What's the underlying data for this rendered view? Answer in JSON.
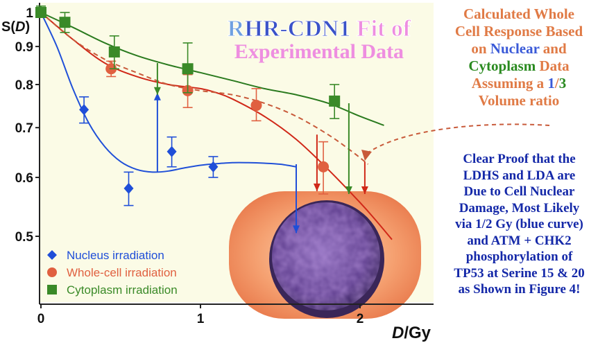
{
  "chart_data": {
    "type": "scatter",
    "title_parts": [
      {
        "text": "R",
        "color": "#6fa0e0"
      },
      {
        "text": "HR-CDN1",
        "color": "#3a52c8"
      },
      {
        "text": " Fit of",
        "color": "#ee8ee0"
      }
    ],
    "title_line2": "Experimental Data",
    "title_line2_color": "#ee8ee0",
    "ylabel": "S(D)",
    "ylabel_parts": [
      "S(",
      "D",
      ")"
    ],
    "xlabel_parts": [
      "D",
      "/Gy"
    ],
    "xlim": [
      0,
      2.4
    ],
    "ylim_log": [
      0.38,
      1.02
    ],
    "y_scale": "log",
    "x_ticks": [
      {
        "v": 0,
        "label": "0"
      },
      {
        "v": 1,
        "label": "1"
      },
      {
        "v": 2,
        "label": "2"
      }
    ],
    "y_ticks": [
      {
        "v": 1,
        "label": "1"
      },
      {
        "v": 0.9,
        "label": "0.9"
      },
      {
        "v": 0.8,
        "label": "0.8"
      },
      {
        "v": 0.7,
        "label": "0.7"
      },
      {
        "v": 0.6,
        "label": "0.6"
      },
      {
        "v": 0.5,
        "label": "0.5"
      }
    ],
    "legend_position": "bottom-left",
    "series": [
      {
        "name": "Nucleus irradiation",
        "marker": "diamond",
        "color": "#1f4ed8",
        "points": [
          {
            "x": 0,
            "y": 1.0,
            "lo": 0.985,
            "hi": 1.01
          },
          {
            "x": 0.27,
            "y": 0.74,
            "lo": 0.71,
            "hi": 0.77
          },
          {
            "x": 0.55,
            "y": 0.58,
            "lo": 0.55,
            "hi": 0.61
          },
          {
            "x": 0.82,
            "y": 0.65,
            "lo": 0.62,
            "hi": 0.68
          },
          {
            "x": 1.08,
            "y": 0.62,
            "lo": 0.6,
            "hi": 0.64
          }
        ]
      },
      {
        "name": "Whole-cell irradiation",
        "marker": "circle",
        "color": "#e06040",
        "points": [
          {
            "x": 0,
            "y": 1.0,
            "lo": 0.985,
            "hi": 1.01
          },
          {
            "x": 0.44,
            "y": 0.84,
            "lo": 0.82,
            "hi": 0.86
          },
          {
            "x": 0.92,
            "y": 0.785,
            "lo": 0.745,
            "hi": 0.825
          },
          {
            "x": 1.35,
            "y": 0.75,
            "lo": 0.715,
            "hi": 0.79
          },
          {
            "x": 1.77,
            "y": 0.62,
            "lo": 0.57,
            "hi": 0.67
          }
        ]
      },
      {
        "name": "Cytoplasm irradiation",
        "marker": "square",
        "color": "#3a8a28",
        "points": [
          {
            "x": 0,
            "y": 1.0,
            "lo": 0.985,
            "hi": 1.02
          },
          {
            "x": 0.15,
            "y": 0.97,
            "lo": 0.94,
            "hi": 1.0
          },
          {
            "x": 0.46,
            "y": 0.885,
            "lo": 0.84,
            "hi": 0.93
          },
          {
            "x": 0.92,
            "y": 0.84,
            "lo": 0.78,
            "hi": 0.91
          },
          {
            "x": 1.84,
            "y": 0.76,
            "lo": 0.72,
            "hi": 0.8
          }
        ]
      }
    ],
    "fits": [
      {
        "name": "nucleus-fit",
        "color": "#2050d8",
        "dash": false,
        "points": [
          [
            0,
            1.0
          ],
          [
            0.1,
            0.9
          ],
          [
            0.2,
            0.79
          ],
          [
            0.3,
            0.71
          ],
          [
            0.4,
            0.66
          ],
          [
            0.5,
            0.63
          ],
          [
            0.6,
            0.615
          ],
          [
            0.7,
            0.61
          ],
          [
            0.8,
            0.612
          ],
          [
            0.9,
            0.618
          ],
          [
            1.0,
            0.623
          ],
          [
            1.1,
            0.626
          ],
          [
            1.2,
            0.628
          ],
          [
            1.3,
            0.628
          ],
          [
            1.4,
            0.627
          ],
          [
            1.5,
            0.625
          ],
          [
            1.6,
            0.62
          ]
        ]
      },
      {
        "name": "whole-cell-fit",
        "color": "#d02818",
        "dash": false,
        "points": [
          [
            0,
            1.0
          ],
          [
            0.2,
            0.92
          ],
          [
            0.4,
            0.855
          ],
          [
            0.6,
            0.82
          ],
          [
            0.8,
            0.8
          ],
          [
            1.0,
            0.79
          ],
          [
            1.1,
            0.78
          ],
          [
            1.2,
            0.765
          ],
          [
            1.4,
            0.725
          ],
          [
            1.6,
            0.675
          ],
          [
            1.8,
            0.615
          ],
          [
            2.0,
            0.555
          ],
          [
            2.1,
            0.525
          ],
          [
            2.2,
            0.495
          ]
        ]
      },
      {
        "name": "cytoplasm-fit",
        "color": "#2a7a1e",
        "dash": false,
        "points": [
          [
            0,
            1.0
          ],
          [
            0.2,
            0.955
          ],
          [
            0.4,
            0.91
          ],
          [
            0.6,
            0.875
          ],
          [
            0.8,
            0.85
          ],
          [
            1.0,
            0.83
          ],
          [
            1.2,
            0.81
          ],
          [
            1.4,
            0.79
          ],
          [
            1.6,
            0.775
          ],
          [
            1.8,
            0.755
          ],
          [
            2.0,
            0.725
          ],
          [
            2.15,
            0.705
          ]
        ]
      },
      {
        "name": "calculated-whole-cell-fit",
        "color": "#c85a3a",
        "dash": true,
        "points": [
          [
            0,
            1.0
          ],
          [
            0.2,
            0.92
          ],
          [
            0.4,
            0.865
          ],
          [
            0.6,
            0.83
          ],
          [
            0.8,
            0.8
          ],
          [
            1.0,
            0.785
          ],
          [
            1.2,
            0.775
          ],
          [
            1.4,
            0.755
          ],
          [
            1.6,
            0.725
          ],
          [
            1.8,
            0.685
          ],
          [
            1.95,
            0.65
          ],
          [
            2.05,
            0.625
          ]
        ]
      }
    ],
    "drops": [
      {
        "name": "blue-drop",
        "color": "#1f4ed8",
        "head": "up",
        "x": 0.73,
        "y_top": 0.78,
        "y_bottom": 0.61,
        "x2": 1.6,
        "y2_top": 0.625,
        "y2_bottom": 0.505
      },
      {
        "name": "green-drop",
        "color": "#3a8a28",
        "head": "down",
        "x": 0.73,
        "y_top": 0.855,
        "y_bottom": 0.775,
        "x2": 1.93,
        "y2_top": 0.755,
        "y2_bottom": 0.57
      },
      {
        "name": "red-drop",
        "color": "#d02818",
        "head": "down",
        "x": 1.73,
        "y_top": 0.685,
        "y_bottom": 0.575,
        "x2": 2.03,
        "y2_top": 0.63,
        "y2_bottom": 0.57
      }
    ]
  },
  "side_top_parts": [
    [
      {
        "t": "Calculated Whole",
        "c": "#e07a45"
      }
    ],
    [
      {
        "t": "Cell Response Based",
        "c": "#e07a45"
      }
    ],
    [
      {
        "t": "on ",
        "c": "#e07a45"
      },
      {
        "t": "Nuclear",
        "c": "#3a5ad8"
      },
      {
        "t": " and",
        "c": "#e07a45"
      }
    ],
    [
      {
        "t": "Cytoplasm",
        "c": "#2a8a20"
      },
      {
        "t": " Data",
        "c": "#e07a45"
      }
    ],
    [
      {
        "t": "Assuming a ",
        "c": "#e07a45"
      },
      {
        "t": "1",
        "c": "#3a5ad8"
      },
      {
        "t": "/",
        "c": "#e07a45"
      },
      {
        "t": "3",
        "c": "#2a8a20"
      }
    ],
    [
      {
        "t": "Volume ratio",
        "c": "#e07a45"
      }
    ]
  ],
  "side_bottom_lines": [
    "Clear Proof that the",
    "LDHS and LDA are",
    "Due to Cell Nuclear",
    "Damage, Most Likely",
    "via 1/2 Gy (blue curve)",
    "and ATM + CHK2",
    "phosphorylation of",
    "TP53 at Serine 15 & 20",
    "as Shown in Figure 4!"
  ],
  "colors": {
    "plot_bg": "#fbfbe6",
    "cell": "#f5a070",
    "nucleus": "#5a3a8a"
  }
}
